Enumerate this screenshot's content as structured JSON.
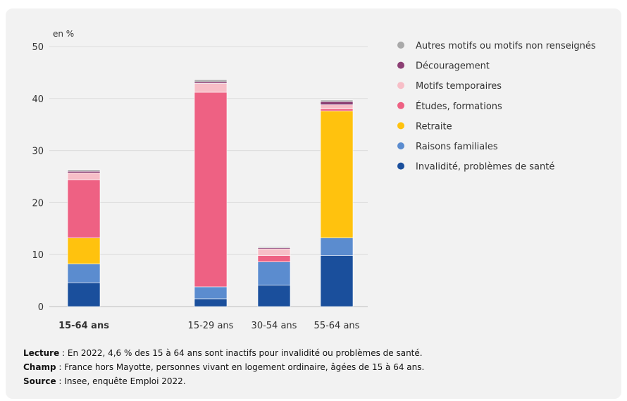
{
  "chart_data": {
    "type": "bar",
    "stacked": true,
    "ylabel": "en %",
    "ylim": [
      0,
      50
    ],
    "yticks": [
      0,
      10,
      20,
      30,
      40,
      50
    ],
    "categories": [
      "15-64 ans",
      "15-29 ans",
      "30-54 ans",
      "55-64 ans"
    ],
    "highlight_category": "15-64 ans",
    "legend_position": "right",
    "series": [
      {
        "name": "Invalidité, problèmes de santé",
        "color": "#1a4f9c",
        "values": [
          4.6,
          1.5,
          4.1,
          9.8
        ]
      },
      {
        "name": "Raisons familiales",
        "color": "#5b8ccf",
        "values": [
          3.6,
          2.3,
          4.5,
          3.4
        ]
      },
      {
        "name": "Retraite",
        "color": "#ffc20e",
        "values": [
          5.0,
          0.0,
          0.0,
          24.4
        ]
      },
      {
        "name": "Études, formations",
        "color": "#ee6183",
        "values": [
          11.2,
          37.4,
          1.2,
          0.4
        ]
      },
      {
        "name": "Motifs temporaires",
        "color": "#f7bec7",
        "values": [
          1.3,
          1.7,
          1.3,
          0.8
        ]
      },
      {
        "name": "Découragement",
        "color": "#8c3f74",
        "values": [
          0.3,
          0.3,
          0.2,
          0.6
        ]
      },
      {
        "name": "Autres motifs ou motifs non renseignés",
        "color": "#a9a9a9",
        "values": [
          0.3,
          0.4,
          0.2,
          0.3
        ]
      }
    ]
  },
  "notes": {
    "lecture_label": "Lecture",
    "lecture_text": " : En 2022, 4,6 % des 15 à 64 ans sont inactifs pour invalidité ou problèmes de santé.",
    "champ_label": "Champ",
    "champ_text": " : France hors Mayotte, personnes vivant en logement ordinaire, âgées de 15 à 64 ans.",
    "source_label": "Source",
    "source_text": " : Insee, enquête Emploi 2022."
  }
}
